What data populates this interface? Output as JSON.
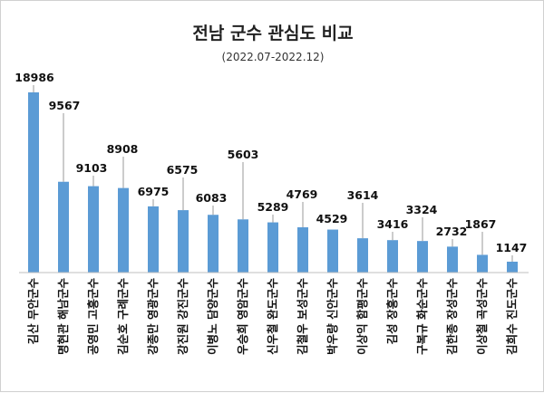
{
  "chart_data": {
    "type": "bar",
    "title": "전남 군수 관심도 비교",
    "subtitle": "(2022.07-2022.12)",
    "categories": [
      "김산 무안군수",
      "명현관 해남군수",
      "공영민 고흥군수",
      "김순호 구례군수",
      "강종만 영광군수",
      "강진원 강진군수",
      "이병노 담양군수",
      "우승희 영암군수",
      "신우철 완도군수",
      "김철우 보성군수",
      "박우량 신안군수",
      "이상익 함평군수",
      "김성 장흥군수",
      "구복규 화순군수",
      "김한종 장성군수",
      "이상철 곡성군수",
      "김희수 진도군수"
    ],
    "values": [
      18986,
      9567,
      9103,
      8908,
      6975,
      6575,
      6083,
      5603,
      5289,
      4769,
      4529,
      3614,
      3416,
      3324,
      2732,
      1867,
      1147
    ],
    "labels": [
      "18986",
      "9567",
      "9103",
      "8908",
      "6975",
      "6575",
      "6083",
      "5603",
      "5289",
      "4769",
      "4529",
      "3614",
      "3416",
      "3324",
      "2732",
      "1867",
      "1147"
    ],
    "ylim": [
      0,
      19000
    ],
    "bar_color": "#5b9bd5",
    "leader_color": "#999999",
    "axis_color": "#bfbfbf",
    "grid": false,
    "legend": "none"
  }
}
